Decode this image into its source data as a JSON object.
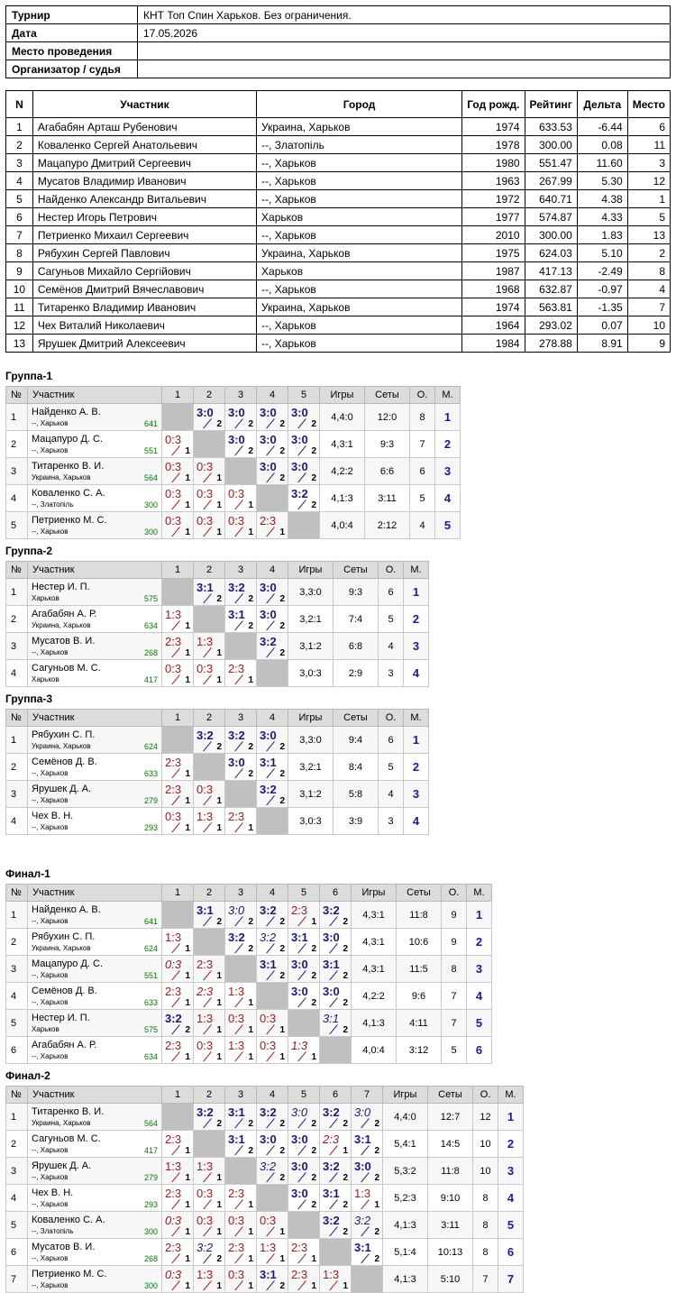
{
  "info": [
    {
      "key": "Турнир",
      "value": "КНТ Топ Спин Харьков. Без ограничения."
    },
    {
      "key": "Дата",
      "value": "17.05.2026"
    },
    {
      "key": "Место проведения",
      "value": ""
    },
    {
      "key": "Организатор / судья",
      "value": ""
    }
  ],
  "players_headers": [
    "N",
    "Участник",
    "Город",
    "Год рожд.",
    "Рейтинг",
    "Дельта",
    "Место"
  ],
  "players": [
    [
      "1",
      "Агабабян Арташ Рубенович",
      "Украина, Харьков",
      "1974",
      "633.53",
      "-6.44",
      "6"
    ],
    [
      "2",
      "Коваленко Сергей Анатольевич",
      "--, Златопіль",
      "1978",
      "300.00",
      "0.08",
      "11"
    ],
    [
      "3",
      "Мацапуро Дмитрий Сергеевич",
      "--, Харьков",
      "1980",
      "551.47",
      "11.60",
      "3"
    ],
    [
      "4",
      "Мусатов Владимир Иванович",
      "--, Харьков",
      "1963",
      "267.99",
      "5.30",
      "12"
    ],
    [
      "5",
      "Найденко Александр Витальевич",
      "--, Харьков",
      "1972",
      "640.71",
      "4.38",
      "1"
    ],
    [
      "6",
      "Нестер Игорь Петрович",
      "Харьков",
      "1977",
      "574.87",
      "4.33",
      "5"
    ],
    [
      "7",
      "Петриенко Михаил Сергеевич",
      "--, Харьков",
      "2010",
      "300.00",
      "1.83",
      "13"
    ],
    [
      "8",
      "Рябухин Сергей Павлович",
      "Украина, Харьков",
      "1975",
      "624.03",
      "5.10",
      "2"
    ],
    [
      "9",
      "Сагуньов Михайло Сергійович",
      "Харьков",
      "1987",
      "417.13",
      "-2.49",
      "8"
    ],
    [
      "10",
      "Семёнов Дмитрий Вячеславович",
      "--, Харьков",
      "1968",
      "632.87",
      "-0.97",
      "4"
    ],
    [
      "11",
      "Титаренко Владимир Иванович",
      "Украина, Харьков",
      "1974",
      "563.81",
      "-1.35",
      "7"
    ],
    [
      "12",
      "Чех Виталий Николаевич",
      "--, Харьков",
      "1964",
      "293.02",
      "0.07",
      "10"
    ],
    [
      "13",
      "Ярушек Дмитрий Алексеевич",
      "--, Харьков",
      "1984",
      "278.88",
      "8.91",
      "9"
    ]
  ],
  "group_headers": {
    "num": "№",
    "player": "Участник",
    "games": "Игры",
    "sets": "Сеты",
    "points": "О.",
    "place": "М."
  },
  "groups": [
    {
      "title": "Группа-1",
      "rows": [
        {
          "n": "1",
          "name": "Найденко А. В.",
          "city": "--, Харьков",
          "rating": "641",
          "cells": [
            null,
            "w:3:0",
            "w:3:0",
            "w:3:0",
            "w:3:0"
          ],
          "games": "4,4:0",
          "sets": "12:0",
          "points": "8",
          "place": "1"
        },
        {
          "n": "2",
          "name": "Мацапуро Д. С.",
          "city": "--, Харьков",
          "rating": "551",
          "cells": [
            "l:0:3",
            null,
            "w:3:0",
            "w:3:0",
            "w:3:0"
          ],
          "games": "4,3:1",
          "sets": "9:3",
          "points": "7",
          "place": "2"
        },
        {
          "n": "3",
          "name": "Титаренко В. И.",
          "city": "Украина, Харьков",
          "rating": "564",
          "cells": [
            "l:0:3",
            "l:0:3",
            null,
            "w:3:0",
            "w:3:0"
          ],
          "games": "4,2:2",
          "sets": "6:6",
          "points": "6",
          "place": "3"
        },
        {
          "n": "4",
          "name": "Коваленко С. А.",
          "city": "--, Златопіль",
          "rating": "300",
          "cells": [
            "l:0:3",
            "l:0:3",
            "l:0:3",
            null,
            "w:3:2"
          ],
          "games": "4,1:3",
          "sets": "3:11",
          "points": "5",
          "place": "4"
        },
        {
          "n": "5",
          "name": "Петриенко М. С.",
          "city": "--, Харьков",
          "rating": "300",
          "cells": [
            "l:0:3",
            "l:0:3",
            "l:0:3",
            "l:2:3",
            null
          ],
          "games": "4,0:4",
          "sets": "2:12",
          "points": "4",
          "place": "5"
        }
      ]
    },
    {
      "title": "Группа-2",
      "rows": [
        {
          "n": "1",
          "name": "Нестер И. П.",
          "city": "Харьков",
          "rating": "575",
          "cells": [
            null,
            "w:3:1",
            "w:3:2",
            "w:3:0"
          ],
          "games": "3,3:0",
          "sets": "9:3",
          "points": "6",
          "place": "1"
        },
        {
          "n": "2",
          "name": "Агабабян А. Р.",
          "city": "Украина, Харьков",
          "rating": "634",
          "cells": [
            "l:1:3",
            null,
            "w:3:1",
            "w:3:0"
          ],
          "games": "3,2:1",
          "sets": "7:4",
          "points": "5",
          "place": "2"
        },
        {
          "n": "3",
          "name": "Мусатов В. И.",
          "city": "--, Харьков",
          "rating": "268",
          "cells": [
            "l:2:3",
            "l:1:3",
            null,
            "w:3:2"
          ],
          "games": "3,1:2",
          "sets": "6:8",
          "points": "4",
          "place": "3"
        },
        {
          "n": "4",
          "name": "Сагуньов М. С.",
          "city": "Харьков",
          "rating": "417",
          "cells": [
            "l:0:3",
            "l:0:3",
            "l:2:3",
            null
          ],
          "games": "3,0:3",
          "sets": "2:9",
          "points": "3",
          "place": "4"
        }
      ]
    },
    {
      "title": "Группа-3",
      "rows": [
        {
          "n": "1",
          "name": "Рябухин С. П.",
          "city": "Украина, Харьков",
          "rating": "624",
          "cells": [
            null,
            "w:3:2",
            "w:3:2",
            "w:3:0"
          ],
          "games": "3,3:0",
          "sets": "9:4",
          "points": "6",
          "place": "1"
        },
        {
          "n": "2",
          "name": "Семёнов Д. В.",
          "city": "--, Харьков",
          "rating": "633",
          "cells": [
            "l:2:3",
            null,
            "w:3:0",
            "w:3:1"
          ],
          "games": "3,2:1",
          "sets": "8:4",
          "points": "5",
          "place": "2"
        },
        {
          "n": "3",
          "name": "Ярушек Д. А.",
          "city": "--, Харьков",
          "rating": "279",
          "cells": [
            "l:2:3",
            "l:0:3",
            null,
            "w:3:2"
          ],
          "games": "3,1:2",
          "sets": "5:8",
          "points": "4",
          "place": "3"
        },
        {
          "n": "4",
          "name": "Чех В. Н.",
          "city": "--, Харьков",
          "rating": "293",
          "cells": [
            "l:0:3",
            "l:1:3",
            "l:2:3",
            null
          ],
          "games": "3,0:3",
          "sets": "3:9",
          "points": "3",
          "place": "4"
        }
      ]
    },
    {
      "title": "Финал-1",
      "rows": [
        {
          "n": "1",
          "name": "Найденко А. В.",
          "city": "--, Харьков",
          "rating": "641",
          "cells": [
            null,
            "w:3:1",
            "wi:3:0",
            "w:3:2",
            "l:2:3",
            "w:3:2"
          ],
          "games": "4,3:1",
          "sets": "11:8",
          "points": "9",
          "place": "1"
        },
        {
          "n": "2",
          "name": "Рябухин С. П.",
          "city": "Украина, Харьков",
          "rating": "624",
          "cells": [
            "l:1:3",
            null,
            "w:3:2",
            "wi:3:2",
            "w:3:1",
            "w:3:0"
          ],
          "games": "4,3:1",
          "sets": "10:6",
          "points": "9",
          "place": "2"
        },
        {
          "n": "3",
          "name": "Мацапуро Д. С.",
          "city": "--, Харьков",
          "rating": "551",
          "cells": [
            "li:0:3",
            "l:2:3",
            null,
            "w:3:1",
            "w:3:0",
            "w:3:1"
          ],
          "games": "4,3:1",
          "sets": "11:5",
          "points": "8",
          "place": "3"
        },
        {
          "n": "4",
          "name": "Семёнов Д. В.",
          "city": "--, Харьков",
          "rating": "633",
          "cells": [
            "l:2:3",
            "li:2:3",
            "l:1:3",
            null,
            "w:3:0",
            "w:3:0"
          ],
          "games": "4,2:2",
          "sets": "9:6",
          "points": "7",
          "place": "4"
        },
        {
          "n": "5",
          "name": "Нестер И. П.",
          "city": "Харьков",
          "rating": "575",
          "cells": [
            "w:3:2",
            "l:1:3",
            "l:0:3",
            "l:0:3",
            null,
            "wi:3:1"
          ],
          "games": "4,1:3",
          "sets": "4:11",
          "points": "7",
          "place": "5"
        },
        {
          "n": "6",
          "name": "Агабабян А. Р.",
          "city": "--, Харьков",
          "rating": "634",
          "cells": [
            "l:2:3",
            "l:0:3",
            "l:1:3",
            "l:0:3",
            "li:1:3",
            null
          ],
          "games": "4,0:4",
          "sets": "3:12",
          "points": "5",
          "place": "6"
        }
      ]
    },
    {
      "title": "Финал-2",
      "rows": [
        {
          "n": "1",
          "name": "Титаренко В. И.",
          "city": "Украина, Харьков",
          "rating": "564",
          "cells": [
            null,
            "w:3:2",
            "w:3:1",
            "w:3:2",
            "wi:3:0",
            "w:3:2",
            "wi:3:0"
          ],
          "games": "4,4:0",
          "sets": "12:7",
          "points": "12",
          "place": "1"
        },
        {
          "n": "2",
          "name": "Сагуньов М. С.",
          "city": "--, Харьков",
          "rating": "417",
          "cells": [
            "l:2:3",
            null,
            "w:3:1",
            "w:3:0",
            "w:3:0",
            "li:2:3",
            "w:3:1"
          ],
          "games": "5,4:1",
          "sets": "14:5",
          "points": "10",
          "place": "2"
        },
        {
          "n": "3",
          "name": "Ярушек Д. А.",
          "city": "--, Харьков",
          "rating": "279",
          "cells": [
            "l:1:3",
            "l:1:3",
            null,
            "wi:3:2",
            "w:3:0",
            "w:3:2",
            "w:3:0"
          ],
          "games": "5,3:2",
          "sets": "11:8",
          "points": "10",
          "place": "3"
        },
        {
          "n": "4",
          "name": "Чех В. Н.",
          "city": "--, Харьков",
          "rating": "293",
          "cells": [
            "l:2:3",
            "l:0:3",
            "l:2:3",
            null,
            "w:3:0",
            "w:3:1",
            "l:1:3"
          ],
          "games": "5,2:3",
          "sets": "9:10",
          "points": "8",
          "place": "4"
        },
        {
          "n": "5",
          "name": "Коваленко С. А.",
          "city": "--, Златопіль",
          "rating": "300",
          "cells": [
            "li:0:3",
            "l:0:3",
            "l:0:3",
            "l:0:3",
            null,
            "w:3:2",
            "wi:3:2"
          ],
          "games": "4,1:3",
          "sets": "3:11",
          "points": "8",
          "place": "5"
        },
        {
          "n": "6",
          "name": "Мусатов В. И.",
          "city": "--, Харьков",
          "rating": "268",
          "cells": [
            "l:2:3",
            "wi:3:2",
            "l:2:3",
            "l:1:3",
            "l:2:3",
            null,
            "w:3:1"
          ],
          "games": "5,1:4",
          "sets": "10:13",
          "points": "8",
          "place": "6"
        },
        {
          "n": "7",
          "name": "Петриенко М. С.",
          "city": "--, Харьков",
          "rating": "300",
          "cells": [
            "li:0:3",
            "l:1:3",
            "l:0:3",
            "w:3:1",
            "l:2:3",
            "l:1:3",
            null
          ],
          "games": "4,1:3",
          "sets": "5:10",
          "points": "7",
          "place": "7"
        }
      ]
    }
  ]
}
